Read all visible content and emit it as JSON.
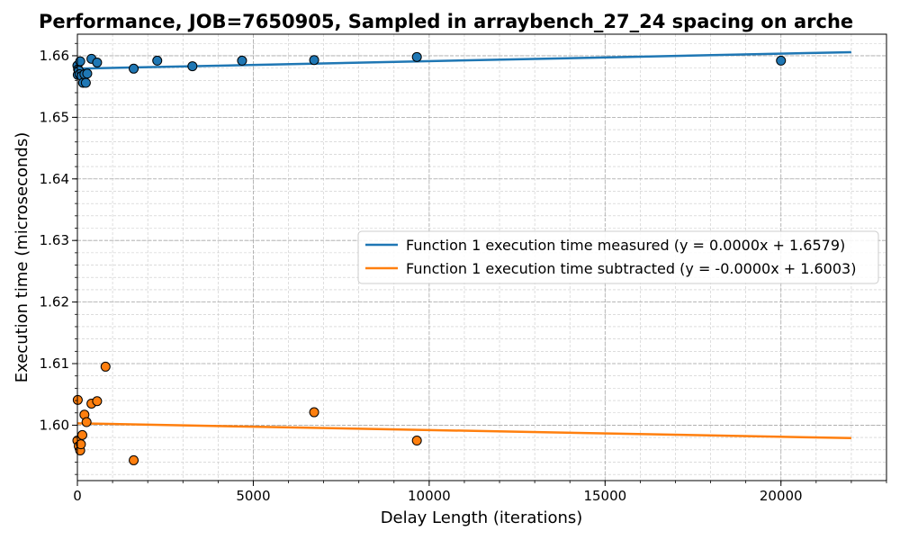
{
  "chart_data": {
    "type": "scatter",
    "title": "Performance, JOB=7650905, Sampled in arraybench_27_24 spacing on arche",
    "xlabel": "Delay Length (iterations)",
    "ylabel": "Execution time (microseconds)",
    "xlim": [
      0,
      23000
    ],
    "ylim": [
      1.591,
      1.6635
    ],
    "x_ticks": [
      0,
      5000,
      10000,
      15000,
      20000
    ],
    "x_tick_labels": [
      "0",
      "5000",
      "10000",
      "15000",
      "20000"
    ],
    "y_ticks": [
      1.6,
      1.61,
      1.62,
      1.63,
      1.64,
      1.65,
      1.66
    ],
    "y_tick_labels": [
      "1.60",
      "1.61",
      "1.62",
      "1.63",
      "1.64",
      "1.65",
      "1.66"
    ],
    "grid": true,
    "legend_position": "center-right",
    "series": [
      {
        "name": "Function 1 execution time measured (y = 0.0000x + 1.6579)",
        "color": "#1f77b4",
        "points": [
          [
            0,
            1.6584
          ],
          [
            10,
            1.6569
          ],
          [
            20,
            1.6578
          ],
          [
            40,
            1.6576
          ],
          [
            60,
            1.657
          ],
          [
            80,
            1.6591
          ],
          [
            120,
            1.6567
          ],
          [
            160,
            1.6556
          ],
          [
            200,
            1.657
          ],
          [
            240,
            1.6556
          ],
          [
            280,
            1.6571
          ],
          [
            400,
            1.6595
          ],
          [
            560,
            1.6589
          ],
          [
            1600,
            1.6579
          ],
          [
            2270,
            1.6592
          ],
          [
            3270,
            1.6583
          ],
          [
            4680,
            1.6592
          ],
          [
            6730,
            1.6593
          ],
          [
            9650,
            1.6598
          ],
          [
            20000,
            1.6592
          ]
        ],
        "fit": {
          "slope": 1.22e-07,
          "intercept": 1.6579,
          "x_range": [
            0,
            22000
          ]
        }
      },
      {
        "name": "Function 1 execution time subtracted (y = -0.0000x + 1.6003)",
        "color": "#ff7f0e",
        "points": [
          [
            0,
            1.5975
          ],
          [
            10,
            1.6041
          ],
          [
            40,
            1.5966
          ],
          [
            80,
            1.5959
          ],
          [
            100,
            1.5969
          ],
          [
            140,
            1.5984
          ],
          [
            200,
            1.6017
          ],
          [
            260,
            1.6005
          ],
          [
            400,
            1.6035
          ],
          [
            560,
            1.6039
          ],
          [
            800,
            1.6095
          ],
          [
            1600,
            1.5943
          ],
          [
            6730,
            1.6021
          ],
          [
            9650,
            1.5975
          ]
        ],
        "fit": {
          "slope": -1.09e-07,
          "intercept": 1.6003,
          "x_range": [
            0,
            22000
          ]
        }
      }
    ]
  }
}
